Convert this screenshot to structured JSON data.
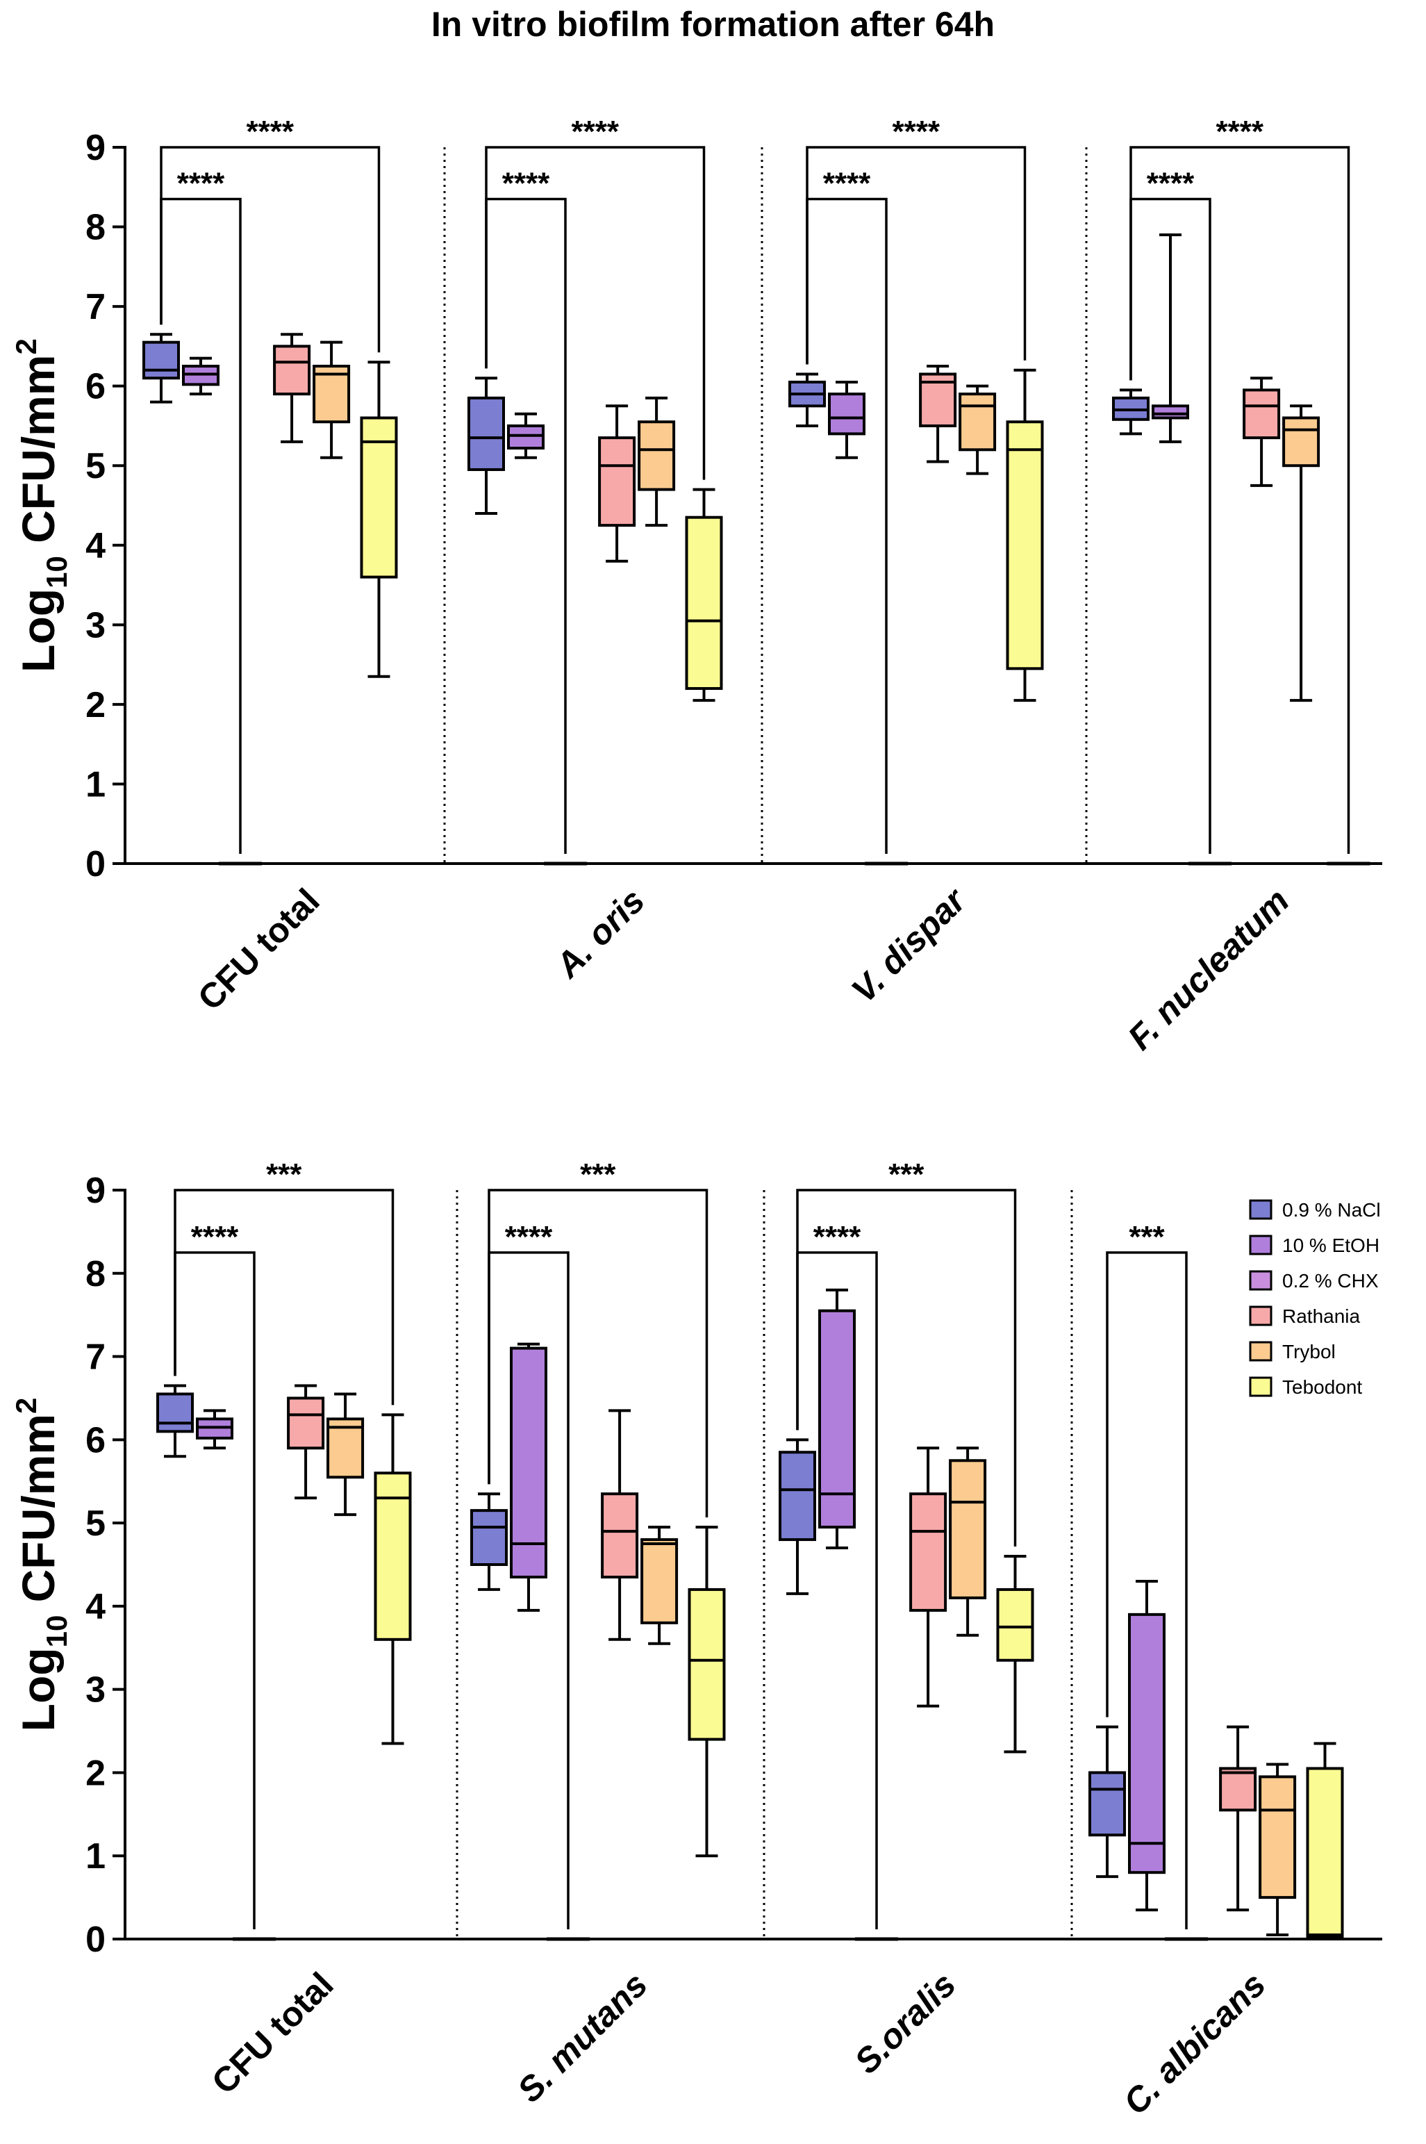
{
  "title": "In vitro biofilm formation after 64h",
  "colors": {
    "nacl": "#7b7ed1",
    "etoh": "#b07fdb",
    "chx": "#c98fde",
    "rathania": "#f7a9a9",
    "trybol": "#fccb8f",
    "tebodont": "#fbfb93"
  },
  "legend": [
    {
      "name": "0.9 % NaCl",
      "color_key": "nacl"
    },
    {
      "name": "10 % EtOH",
      "color_key": "etoh"
    },
    {
      "name": "0.2 % CHX",
      "color_key": "chx"
    },
    {
      "name": "Rathania",
      "color_key": "rathania"
    },
    {
      "name": "Trybol",
      "color_key": "trybol"
    },
    {
      "name": "Tebodont",
      "color_key": "tebodont"
    }
  ],
  "chart_data": [
    {
      "type": "box",
      "title": "In vitro biofilm formation after 64h",
      "ylabel": "Log10 CFU/mm2",
      "ylabel_main": "Log",
      "ylabel_sub": "10",
      "ylabel_rest": " CFU/mm",
      "ylabel_sup": "2",
      "ylim": [
        0,
        9
      ],
      "yticks": [
        "0",
        "1",
        "2",
        "3",
        "4",
        "5",
        "6",
        "7",
        "8",
        "9"
      ],
      "series_order": [
        "0.9 % NaCl",
        "10 % EtOH",
        "0.2 % CHX",
        "Rathania",
        "Trybol",
        "Tebodont"
      ],
      "groups": [
        {
          "label": "CFU total",
          "italic": false,
          "boxes": [
            {
              "series": "0.9 % NaCl",
              "min": 5.8,
              "q1": 6.1,
              "median": 6.2,
              "q3": 6.55,
              "max": 6.65
            },
            {
              "series": "10 % EtOH",
              "min": 5.9,
              "q1": 6.02,
              "median": 6.15,
              "q3": 6.25,
              "max": 6.35
            },
            {
              "series": "0.2 % CHX",
              "min": 0,
              "q1": 0,
              "median": 0,
              "q3": 0,
              "max": 0
            },
            {
              "series": "Rathania",
              "min": 5.3,
              "q1": 5.9,
              "median": 6.3,
              "q3": 6.5,
              "max": 6.65
            },
            {
              "series": "Trybol",
              "min": 5.1,
              "q1": 5.55,
              "median": 6.15,
              "q3": 6.25,
              "max": 6.55
            },
            {
              "series": "Tebodont",
              "min": 2.35,
              "q1": 3.6,
              "median": 5.3,
              "q3": 5.6,
              "max": 6.3
            }
          ],
          "brackets": [
            {
              "text": "****",
              "from": "0.9 % NaCl",
              "to": "0.2 % CHX",
              "level": 8.35
            },
            {
              "text": "****",
              "from": "0.9 % NaCl",
              "to": "Tebodont",
              "level": 9.0
            }
          ]
        },
        {
          "label": "A. oris",
          "italic": true,
          "boxes": [
            {
              "series": "0.9 % NaCl",
              "min": 4.4,
              "q1": 4.95,
              "median": 5.35,
              "q3": 5.85,
              "max": 6.1
            },
            {
              "series": "10 % EtOH",
              "min": 5.1,
              "q1": 5.22,
              "median": 5.38,
              "q3": 5.5,
              "max": 5.65
            },
            {
              "series": "0.2 % CHX",
              "min": 0,
              "q1": 0,
              "median": 0,
              "q3": 0,
              "max": 0
            },
            {
              "series": "Rathania",
              "min": 3.8,
              "q1": 4.25,
              "median": 5.0,
              "q3": 5.35,
              "max": 5.75
            },
            {
              "series": "Trybol",
              "min": 4.25,
              "q1": 4.7,
              "median": 5.2,
              "q3": 5.55,
              "max": 5.85
            },
            {
              "series": "Tebodont",
              "min": 2.05,
              "q1": 2.2,
              "median": 3.05,
              "q3": 4.35,
              "max": 4.7
            }
          ],
          "brackets": [
            {
              "text": "****",
              "from": "0.9 % NaCl",
              "to": "0.2 % CHX",
              "level": 8.35
            },
            {
              "text": "****",
              "from": "0.9 % NaCl",
              "to": "Tebodont",
              "level": 9.0
            }
          ]
        },
        {
          "label": "V. dispar",
          "italic": true,
          "boxes": [
            {
              "series": "0.9 % NaCl",
              "min": 5.5,
              "q1": 5.75,
              "median": 5.9,
              "q3": 6.05,
              "max": 6.15
            },
            {
              "series": "10 % EtOH",
              "min": 5.1,
              "q1": 5.4,
              "median": 5.6,
              "q3": 5.9,
              "max": 6.05
            },
            {
              "series": "0.2 % CHX",
              "min": 0,
              "q1": 0,
              "median": 0,
              "q3": 0,
              "max": 0
            },
            {
              "series": "Rathania",
              "min": 5.05,
              "q1": 5.5,
              "median": 6.05,
              "q3": 6.15,
              "max": 6.25
            },
            {
              "series": "Trybol",
              "min": 4.9,
              "q1": 5.2,
              "median": 5.75,
              "q3": 5.9,
              "max": 6.0
            },
            {
              "series": "Tebodont",
              "min": 2.05,
              "q1": 2.45,
              "median": 5.2,
              "q3": 5.55,
              "max": 6.2
            }
          ],
          "brackets": [
            {
              "text": "****",
              "from": "0.9 % NaCl",
              "to": "0.2 % CHX",
              "level": 8.35
            },
            {
              "text": "****",
              "from": "0.9 % NaCl",
              "to": "Tebodont",
              "level": 9.0
            }
          ]
        },
        {
          "label": "F. nucleatum",
          "italic": true,
          "boxes": [
            {
              "series": "0.9 % NaCl",
              "min": 5.4,
              "q1": 5.58,
              "median": 5.7,
              "q3": 5.85,
              "max": 5.95
            },
            {
              "series": "10 % EtOH",
              "min": 5.3,
              "q1": 5.6,
              "median": 5.65,
              "q3": 5.75,
              "max": 7.9
            },
            {
              "series": "0.2 % CHX",
              "min": 0,
              "q1": 0,
              "median": 0,
              "q3": 0,
              "max": 0
            },
            {
              "series": "Rathania",
              "min": 4.75,
              "q1": 5.35,
              "median": 5.75,
              "q3": 5.95,
              "max": 6.1
            },
            {
              "series": "Trybol",
              "min": 2.05,
              "q1": 5.0,
              "median": 5.45,
              "q3": 5.6,
              "max": 5.75
            },
            {
              "series": "Tebodont",
              "min": 0,
              "q1": 0,
              "median": 0,
              "q3": 0,
              "max": 0
            }
          ],
          "brackets": [
            {
              "text": "****",
              "from": "0.9 % NaCl",
              "to": "0.2 % CHX",
              "level": 8.35
            },
            {
              "text": "****",
              "from": "0.9 % NaCl",
              "to": "Tebodont",
              "level": 9.0
            }
          ]
        }
      ]
    },
    {
      "type": "box",
      "title": "",
      "ylabel": "Log10 CFU/mm2",
      "ylabel_main": "Log",
      "ylabel_sub": "10",
      "ylabel_rest": " CFU/mm",
      "ylabel_sup": "2",
      "ylim": [
        0,
        9
      ],
      "yticks": [
        "0",
        "1",
        "2",
        "3",
        "4",
        "5",
        "6",
        "7",
        "8",
        "9"
      ],
      "series_order": [
        "0.9 % NaCl",
        "10 % EtOH",
        "0.2 % CHX",
        "Rathania",
        "Trybol",
        "Tebodont"
      ],
      "groups": [
        {
          "label": "CFU total",
          "italic": false,
          "boxes": [
            {
              "series": "0.9 % NaCl",
              "min": 5.8,
              "q1": 6.1,
              "median": 6.2,
              "q3": 6.55,
              "max": 6.65
            },
            {
              "series": "10 % EtOH",
              "min": 5.9,
              "q1": 6.02,
              "median": 6.15,
              "q3": 6.25,
              "max": 6.35
            },
            {
              "series": "0.2 % CHX",
              "min": 0,
              "q1": 0,
              "median": 0,
              "q3": 0,
              "max": 0
            },
            {
              "series": "Rathania",
              "min": 5.3,
              "q1": 5.9,
              "median": 6.3,
              "q3": 6.5,
              "max": 6.65
            },
            {
              "series": "Trybol",
              "min": 5.1,
              "q1": 5.55,
              "median": 6.15,
              "q3": 6.25,
              "max": 6.55
            },
            {
              "series": "Tebodont",
              "min": 2.35,
              "q1": 3.6,
              "median": 5.3,
              "q3": 5.6,
              "max": 6.3
            }
          ],
          "brackets": [
            {
              "text": "****",
              "from": "0.9 % NaCl",
              "to": "0.2 % CHX",
              "level": 8.25
            },
            {
              "text": "***",
              "from": "0.9 % NaCl",
              "to": "Tebodont",
              "level": 9.0
            }
          ]
        },
        {
          "label": "S. mutans",
          "italic": true,
          "boxes": [
            {
              "series": "0.9 % NaCl",
              "min": 4.2,
              "q1": 4.5,
              "median": 4.95,
              "q3": 5.15,
              "max": 5.35
            },
            {
              "series": "10 % EtOH",
              "min": 3.95,
              "q1": 4.35,
              "median": 4.75,
              "q3": 7.1,
              "max": 7.15
            },
            {
              "series": "0.2 % CHX",
              "min": 0,
              "q1": 0,
              "median": 0,
              "q3": 0,
              "max": 0
            },
            {
              "series": "Rathania",
              "min": 3.6,
              "q1": 4.35,
              "median": 4.9,
              "q3": 5.35,
              "max": 6.35
            },
            {
              "series": "Trybol",
              "min": 3.55,
              "q1": 3.8,
              "median": 4.75,
              "q3": 4.8,
              "max": 4.95
            },
            {
              "series": "Tebodont",
              "min": 1.0,
              "q1": 2.4,
              "median": 3.35,
              "q3": 4.2,
              "max": 4.95
            }
          ],
          "brackets": [
            {
              "text": "****",
              "from": "0.9 % NaCl",
              "to": "0.2 % CHX",
              "level": 8.25
            },
            {
              "text": "***",
              "from": "0.9 % NaCl",
              "to": "Tebodont",
              "level": 9.0
            }
          ]
        },
        {
          "label": "S.oralis",
          "italic": true,
          "boxes": [
            {
              "series": "0.9 % NaCl",
              "min": 4.15,
              "q1": 4.8,
              "median": 5.4,
              "q3": 5.85,
              "max": 6.0
            },
            {
              "series": "10 % EtOH",
              "min": 4.7,
              "q1": 4.95,
              "median": 5.35,
              "q3": 7.55,
              "max": 7.8
            },
            {
              "series": "0.2 % CHX",
              "min": 0,
              "q1": 0,
              "median": 0,
              "q3": 0,
              "max": 0
            },
            {
              "series": "Rathania",
              "min": 2.8,
              "q1": 3.95,
              "median": 4.9,
              "q3": 5.35,
              "max": 5.9
            },
            {
              "series": "Trybol",
              "min": 3.65,
              "q1": 4.1,
              "median": 5.25,
              "q3": 5.75,
              "max": 5.9
            },
            {
              "series": "Tebodont",
              "min": 2.25,
              "q1": 3.35,
              "median": 3.75,
              "q3": 4.2,
              "max": 4.6
            }
          ],
          "brackets": [
            {
              "text": "****",
              "from": "0.9 % NaCl",
              "to": "0.2 % CHX",
              "level": 8.25
            },
            {
              "text": "***",
              "from": "0.9 % NaCl",
              "to": "Tebodont",
              "level": 9.0
            }
          ]
        },
        {
          "label": "C. albicans",
          "italic": true,
          "boxes": [
            {
              "series": "0.9 % NaCl",
              "min": 0.75,
              "q1": 1.25,
              "median": 1.8,
              "q3": 2.0,
              "max": 2.55
            },
            {
              "series": "10 % EtOH",
              "min": 0.35,
              "q1": 0.8,
              "median": 1.15,
              "q3": 3.9,
              "max": 4.3
            },
            {
              "series": "0.2 % CHX",
              "min": 0,
              "q1": 0,
              "median": 0,
              "q3": 0,
              "max": 0
            },
            {
              "series": "Rathania",
              "min": 0.35,
              "q1": 1.55,
              "median": 2.0,
              "q3": 2.05,
              "max": 2.55
            },
            {
              "series": "Trybol",
              "min": 0.05,
              "q1": 0.5,
              "median": 1.55,
              "q3": 1.95,
              "max": 2.1
            },
            {
              "series": "Tebodont",
              "min": 0.0,
              "q1": 0.02,
              "median": 0.05,
              "q3": 2.05,
              "max": 2.35
            }
          ],
          "brackets": [
            {
              "text": "***",
              "from": "0.9 % NaCl",
              "to": "0.2 % CHX",
              "level": 8.25
            }
          ]
        }
      ]
    }
  ]
}
